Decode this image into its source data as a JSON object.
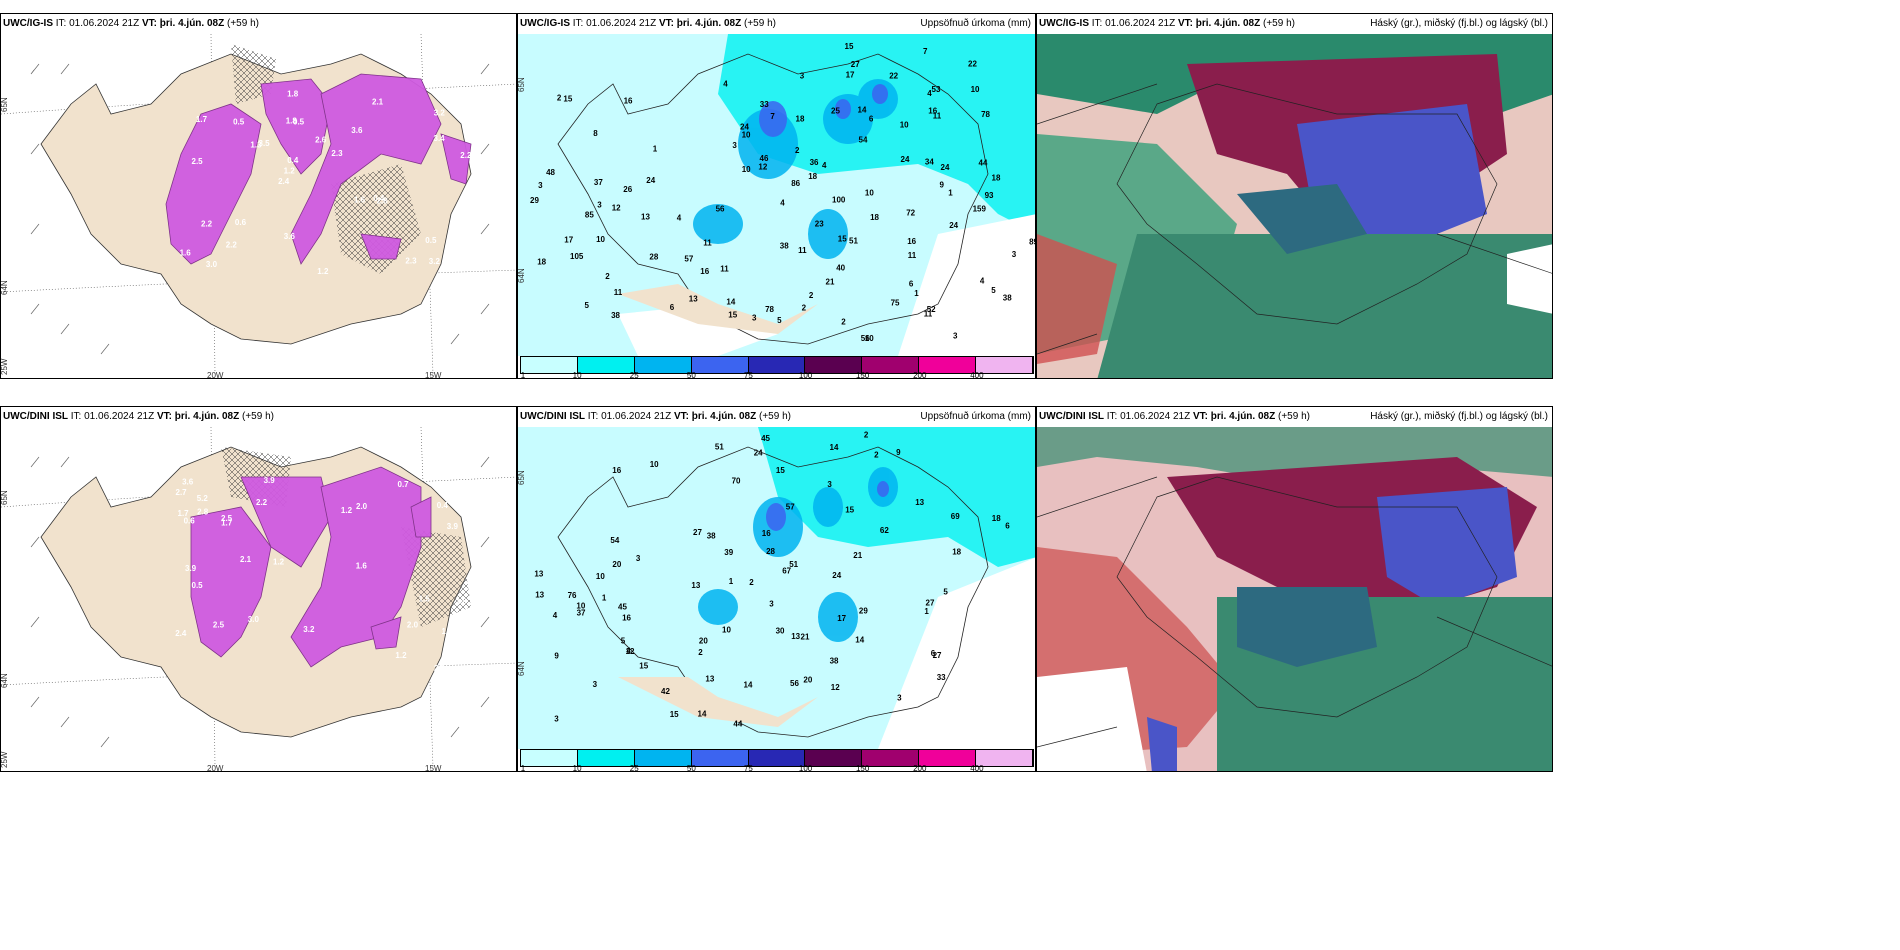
{
  "rows": [
    {
      "wind_panel": {
        "model": "UWC/IG-IS",
        "it_label": "IT:",
        "it_value": "01.06.2024 21Z",
        "vt_label": "VT:",
        "vt_value": "þri. 4.jún. 08Z",
        "lead": "(+59 h)",
        "axis_labels": {
          "lat_top": "65N",
          "lat_bottom": "64N",
          "lon_left": "25W",
          "lon_mid": "20W",
          "lon_right": "15W"
        },
        "values": [
          "3.2",
          "2.5",
          "3.2",
          "2.4",
          "3.6",
          "3.0",
          "1.8",
          "2.6",
          "2.2",
          "3.5",
          "1.6",
          "2.2",
          "0.5",
          "2.3",
          "2.8",
          "1.7",
          "1.8",
          "2.2",
          "1.6",
          "3.4",
          "1.2",
          "3.6",
          "0.4",
          "0.5",
          "2.1",
          "0.6",
          "2.3",
          "0.5",
          "0.4",
          "1.2",
          "1.3"
        ]
      },
      "precip_panel": {
        "model": "UWC/IG-IS",
        "it_label": "IT:",
        "it_value": "01.06.2024 21Z",
        "vt_label": "VT:",
        "vt_value": "þri. 4.jún. 08Z",
        "lead": "(+59 h)",
        "title": "Uppsöfnuð úrkoma (mm)",
        "axis_labels": {
          "lat_top": "65N",
          "lat_bottom": "64N"
        },
        "values": [
          "3",
          "12",
          "15",
          "15",
          "4",
          "8",
          "11",
          "4",
          "10",
          "7",
          "6",
          "11",
          "16",
          "4",
          "100",
          "105",
          "72",
          "86",
          "48",
          "5",
          "22",
          "18",
          "34",
          "89",
          "93",
          "37",
          "13",
          "4",
          "12",
          "10",
          "51",
          "85",
          "57",
          "14",
          "24",
          "24",
          "159",
          "75",
          "53",
          "56",
          "11",
          "11",
          "13",
          "15",
          "56",
          "26",
          "78",
          "27",
          "25",
          "38",
          "18",
          "44",
          "16",
          "24",
          "3",
          "29",
          "15",
          "46",
          "23",
          "24",
          "14",
          "16",
          "16",
          "3",
          "18",
          "17",
          "24",
          "18",
          "22",
          "11",
          "11",
          "78",
          "21",
          "38",
          "54",
          "18",
          "33",
          "40",
          "3",
          "17",
          "10",
          "36",
          "52",
          "38",
          "2",
          "6",
          "10",
          "11",
          "10",
          "7",
          "3",
          "2",
          "4",
          "2",
          "3",
          "2",
          "2",
          "10",
          "9",
          "1",
          "28",
          "5",
          "5",
          "10",
          "4",
          "2",
          "6",
          "1",
          "3",
          "1"
        ]
      },
      "cloud_panel": {
        "model": "UWC/IG-IS",
        "it_label": "IT:",
        "it_value": "01.06.2024 21Z",
        "vt_label": "VT:",
        "vt_value": "þri. 4.jún. 08Z",
        "lead": "(+59 h)",
        "title": "Háský (gr.), miðský (fj.bl.) og lágský (bl.)"
      }
    },
    {
      "wind_panel": {
        "model": "UWC/DINI ISL",
        "it_label": "IT:",
        "it_value": "01.06.2024 21Z",
        "vt_label": "VT:",
        "vt_value": "þri. 4.jún. 08Z",
        "lead": "(+59 h)",
        "axis_labels": {
          "lat_top": "65N",
          "lat_bottom": "64N",
          "lon_left": "25W",
          "lon_mid": "20W",
          "lon_right": "15W"
        },
        "values": [
          "5.2",
          "3.9",
          "1.6",
          "2.4",
          "2.0",
          "3.6",
          "3.0",
          "1.5",
          "3.9",
          "2.5",
          "3.2",
          "2.0",
          "0.5",
          "1.2",
          "1.5",
          "2.2",
          "2.7",
          "1.2",
          "1.7",
          "0.7",
          "2.5",
          "0.6",
          "1.0",
          "1.2",
          "2.1",
          "3.9",
          "2.5",
          "2.8",
          "1.7",
          "0.4",
          "1.3"
        ]
      },
      "precip_panel": {
        "model": "UWC/DINI ISL",
        "it_label": "IT:",
        "it_value": "01.06.2024 21Z",
        "vt_label": "VT:",
        "vt_value": "þri. 4.jún. 08Z",
        "lead": "(+59 h)",
        "title": "Uppsöfnuð úrkoma (mm)",
        "axis_labels": {
          "lat_top": "65N",
          "lat_bottom": "64N"
        },
        "values": [
          "3",
          "9",
          "10",
          "13",
          "13",
          "3",
          "16",
          "4",
          "69",
          "62",
          "76",
          "45",
          "14",
          "67",
          "44",
          "51",
          "33",
          "13",
          "12",
          "14",
          "12",
          "24",
          "70",
          "51",
          "28",
          "13",
          "10",
          "14",
          "57",
          "29",
          "54",
          "15",
          "20",
          "30",
          "27",
          "37",
          "18",
          "24",
          "15",
          "27",
          "6",
          "15",
          "14",
          "45",
          "13",
          "20",
          "17",
          "56",
          "20",
          "38",
          "38",
          "15",
          "16",
          "18",
          "13",
          "21",
          "27",
          "6",
          "16",
          "10",
          "3",
          "2",
          "3",
          "1",
          "10",
          "9",
          "5",
          "21",
          "5",
          "3",
          "1",
          "42",
          "39",
          "1",
          "2",
          "3",
          "4",
          "2",
          "2"
        ]
      },
      "cloud_panel": {
        "model": "UWC/DINI ISL",
        "it_label": "IT:",
        "it_value": "01.06.2024 21Z",
        "vt_label": "VT:",
        "vt_value": "þri. 4.jún. 08Z",
        "lead": "(+59 h)",
        "title": "Háský (gr.), miðský (fj.bl.) og lágský (bl.)"
      }
    }
  ],
  "colorbar": {
    "ticks": [
      "1",
      "10",
      "25",
      "50",
      "75",
      "100",
      "150",
      "200",
      "400"
    ],
    "colors": [
      "#c8ffff",
      "#00f0f0",
      "#00b4f0",
      "#3c64f0",
      "#2828b4",
      "#5a0050",
      "#a0006e",
      "#f0009a",
      "#f0b4f0"
    ]
  },
  "colors": {
    "land_tan": "#f1e2cd",
    "wind_magenta": "#cf5be0",
    "precip_light": "#c8fcff",
    "cloud_high_green": "#2a8a6c",
    "cloud_mid_maroon": "#8a1e4c",
    "cloud_low_blue": "#4a55c8"
  }
}
